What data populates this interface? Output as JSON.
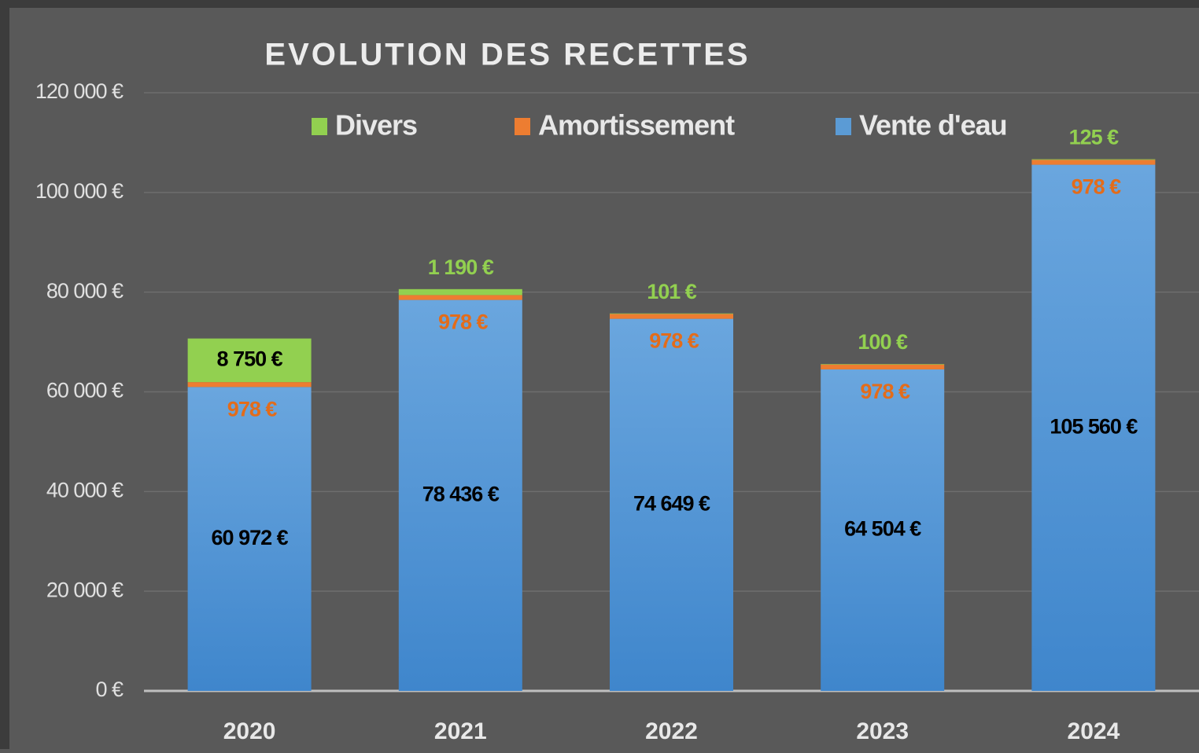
{
  "chart_data": {
    "type": "stacked_bar",
    "title": "EVOLUTION DES RECETTES",
    "categories": [
      "2020",
      "2021",
      "2022",
      "2023",
      "2024"
    ],
    "series": [
      {
        "name": "Divers",
        "color": "#92d050",
        "values": [
          8750,
          1190,
          101,
          100,
          125
        ],
        "value_labels": [
          "8 750 €",
          "1 190 €",
          "101 €",
          "100 €",
          "125 €"
        ]
      },
      {
        "name": "Amortissement",
        "color": "#ed7d31",
        "values": [
          978,
          978,
          978,
          978,
          978
        ],
        "value_labels": [
          "978 €",
          "978 €",
          "978 €",
          "978 €",
          "978 €"
        ]
      },
      {
        "name": "Vente d'eau",
        "color": "#5b9bd5",
        "values": [
          60972,
          78436,
          74649,
          64504,
          105560
        ],
        "value_labels": [
          "60 972 €",
          "78 436 €",
          "74 649 €",
          "64 504 €",
          "105 560 €"
        ]
      }
    ],
    "ylim": [
      0,
      120000
    ],
    "yticks": [
      {
        "value": 0,
        "label": "0 €"
      },
      {
        "value": 20000,
        "label": "20 000 €"
      },
      {
        "value": 40000,
        "label": "40 000 €"
      },
      {
        "value": 60000,
        "label": "60 000 €"
      },
      {
        "value": 80000,
        "label": "80 000 €"
      },
      {
        "value": 100000,
        "label": "100 000 €"
      },
      {
        "value": 120000,
        "label": "120 000 €"
      }
    ],
    "grid": true,
    "legend": "top"
  }
}
